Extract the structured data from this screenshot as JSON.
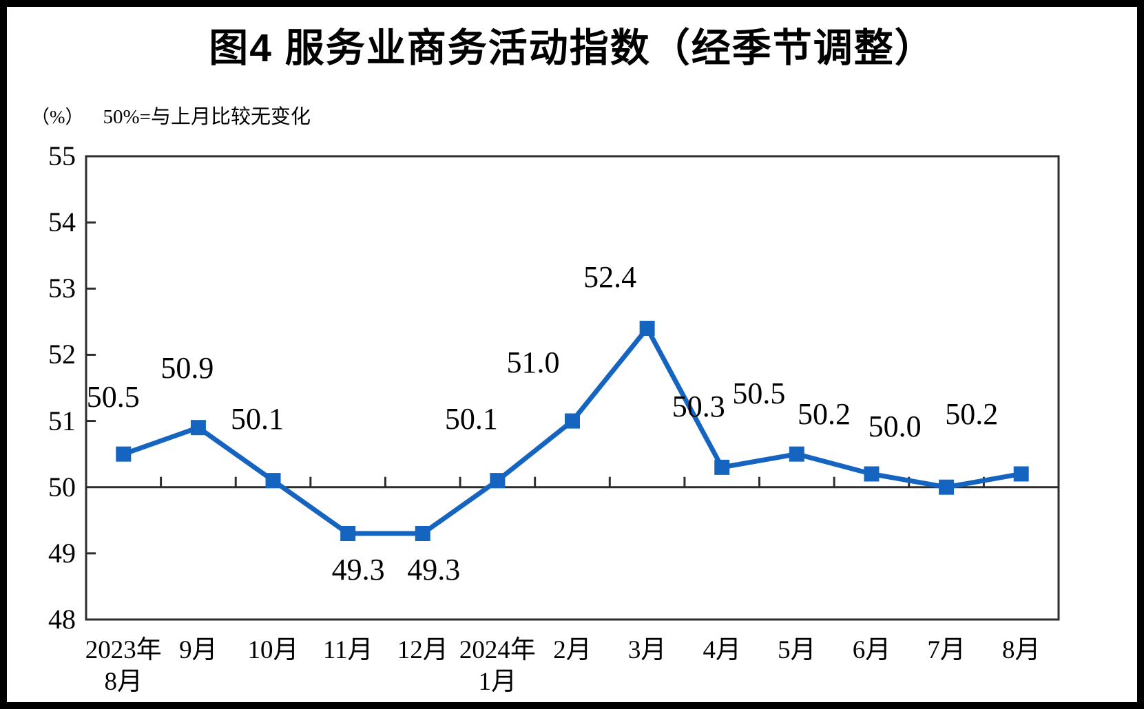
{
  "page": {
    "title": "图4 服务业商务活动指数（经季节调整）",
    "unit_label": "（%）",
    "axis_note": "50%=与上月比较无变化"
  },
  "colors": {
    "line": "#1565c0",
    "marker": "#1565c0",
    "axis": "#2d2d2d",
    "text": "#000000",
    "frame": "#000000",
    "background": "#ffffff"
  },
  "chart_data": {
    "type": "line",
    "title": "图4 服务业商务活动指数（经季节调整）",
    "ylabel": "（%）",
    "annotation": "50%=与上月比较无变化",
    "categories": [
      "2023年\n8月",
      "9月",
      "10月",
      "11月",
      "12月",
      "2024年\n1月",
      "2月",
      "3月",
      "4月",
      "5月",
      "6月",
      "7月",
      "8月"
    ],
    "values": [
      50.5,
      50.9,
      50.1,
      49.3,
      49.3,
      50.1,
      51.0,
      52.4,
      50.3,
      50.5,
      50.2,
      50.0,
      50.2
    ],
    "data_labels": [
      "50.5",
      "50.9",
      "50.1",
      "49.3",
      "49.3",
      "50.1",
      "51.0",
      "52.4",
      "50.3",
      "50.5",
      "50.2",
      "50.0",
      "50.2"
    ],
    "ylim": [
      48,
      55
    ],
    "y_ticks": [
      55,
      54,
      53,
      52,
      51,
      50,
      49,
      48
    ],
    "reference_line": 50,
    "marker": "square",
    "grid": false,
    "legend": "none"
  }
}
